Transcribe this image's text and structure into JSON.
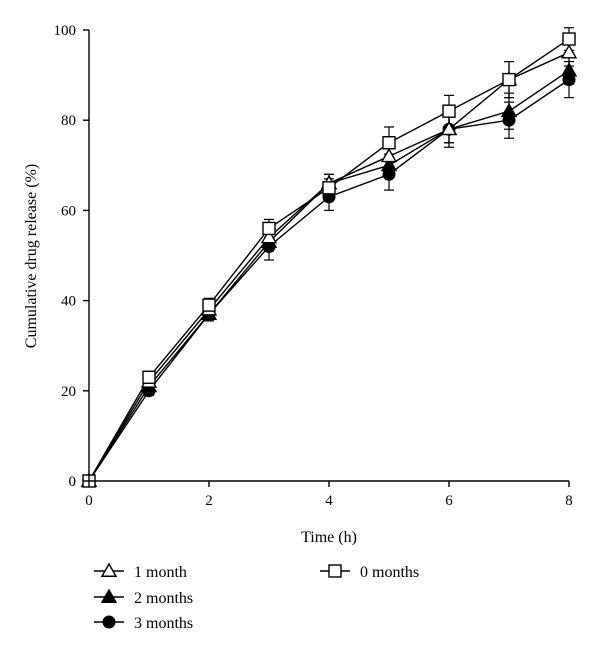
{
  "chart_data": {
    "type": "line",
    "title": "",
    "xlabel": "Time (h)",
    "ylabel": "Cumulative drug release (%)",
    "xlim": [
      0,
      8
    ],
    "ylim": [
      0,
      100
    ],
    "x_ticks": [
      0,
      2,
      4,
      6,
      8
    ],
    "y_ticks": [
      0,
      20,
      40,
      60,
      80,
      100
    ],
    "grid": false,
    "legend_position": "bottom",
    "x": [
      0,
      1,
      2,
      3,
      4,
      5,
      6,
      7,
      8
    ],
    "series": [
      {
        "name": "1 month",
        "marker": "triangle-open",
        "values": [
          0,
          22,
          38,
          54,
          66,
          72,
          78,
          89,
          95
        ],
        "errors": [
          0,
          1,
          1.5,
          2,
          2,
          2.5,
          3,
          4,
          3
        ]
      },
      {
        "name": "2 months",
        "marker": "triangle-filled",
        "values": [
          0,
          21,
          37,
          53,
          66,
          70,
          78,
          82,
          91
        ],
        "errors": [
          0,
          1,
          1.5,
          2,
          2,
          2.5,
          3,
          4,
          3
        ]
      },
      {
        "name": "3 months",
        "marker": "circle-filled",
        "values": [
          0,
          20,
          37,
          52,
          63,
          68,
          78,
          80,
          89
        ],
        "errors": [
          0,
          1,
          1.5,
          3,
          3,
          3.5,
          4,
          4,
          4
        ]
      },
      {
        "name": "0 months",
        "marker": "square-open",
        "values": [
          0,
          23,
          39,
          56,
          65,
          75,
          82,
          89,
          98
        ],
        "errors": [
          0,
          1,
          1.5,
          2,
          2,
          3.5,
          3.5,
          4,
          2.5
        ]
      }
    ]
  }
}
